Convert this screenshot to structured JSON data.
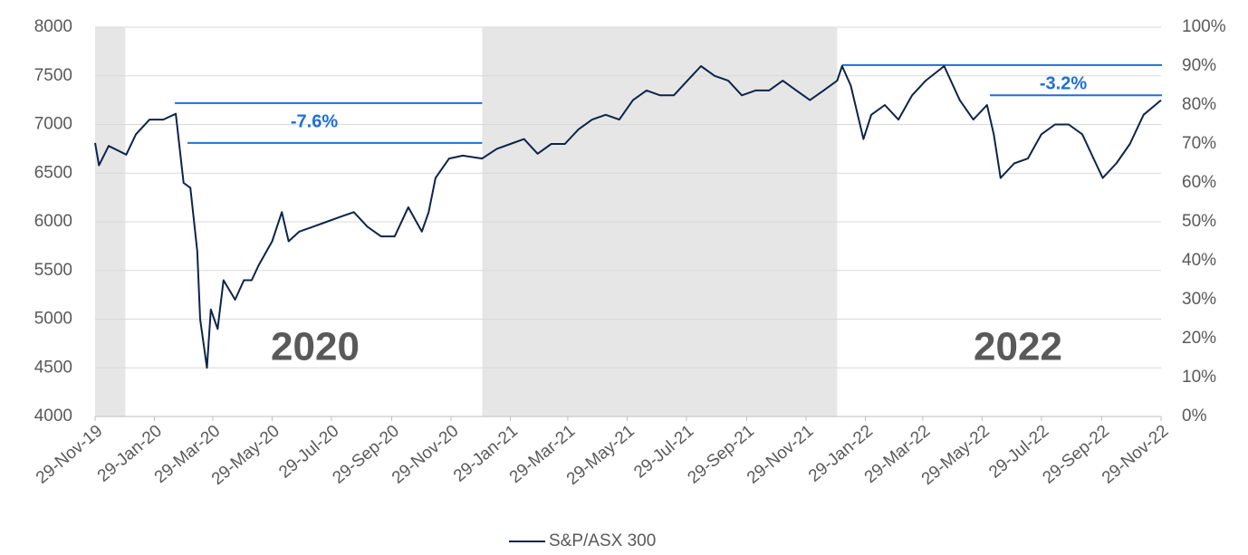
{
  "chart_data": {
    "type": "line",
    "x": [
      "2019-11-29",
      "2019-12-03",
      "2019-12-13",
      "2019-12-31",
      "2020-01-10",
      "2020-01-24",
      "2020-02-07",
      "2020-02-20",
      "2020-02-28",
      "2020-03-06",
      "2020-03-13",
      "2020-03-16",
      "2020-03-23",
      "2020-03-27",
      "2020-04-03",
      "2020-04-09",
      "2020-04-21",
      "2020-04-30",
      "2020-05-08",
      "2020-05-15",
      "2020-05-29",
      "2020-06-08",
      "2020-06-15",
      "2020-06-26",
      "2020-07-10",
      "2020-07-24",
      "2020-08-07",
      "2020-08-21",
      "2020-09-04",
      "2020-09-18",
      "2020-10-02",
      "2020-10-16",
      "2020-10-30",
      "2020-11-06",
      "2020-11-13",
      "2020-11-27",
      "2020-12-11",
      "2020-12-31",
      "2021-01-15",
      "2021-01-29",
      "2021-02-12",
      "2021-02-26",
      "2021-03-12",
      "2021-03-26",
      "2021-04-09",
      "2021-04-23",
      "2021-05-07",
      "2021-05-21",
      "2021-06-04",
      "2021-06-18",
      "2021-07-02",
      "2021-07-16",
      "2021-07-30",
      "2021-08-13",
      "2021-08-27",
      "2021-09-10",
      "2021-09-24",
      "2021-10-08",
      "2021-10-22",
      "2021-11-05",
      "2021-11-19",
      "2021-12-03",
      "2021-12-17",
      "2021-12-31",
      "2022-01-05",
      "2022-01-14",
      "2022-01-27",
      "2022-02-04",
      "2022-02-18",
      "2022-03-04",
      "2022-03-18",
      "2022-04-01",
      "2022-04-20",
      "2022-05-06",
      "2022-05-20",
      "2022-06-03",
      "2022-06-10",
      "2022-06-17",
      "2022-07-01",
      "2022-07-15",
      "2022-07-29",
      "2022-08-12",
      "2022-08-26",
      "2022-09-09",
      "2022-09-23",
      "2022-09-30",
      "2022-10-14",
      "2022-10-28",
      "2022-11-11",
      "2022-11-29"
    ],
    "series": [
      {
        "name": "S&P/ASX 300",
        "color": "#0d2449",
        "values": [
          6810,
          6580,
          6780,
          6690,
          6900,
          7050,
          7050,
          7110,
          6400,
          6350,
          5700,
          5000,
          4500,
          5100,
          4900,
          5400,
          5200,
          5400,
          5400,
          5550,
          5800,
          6100,
          5800,
          5900,
          5950,
          6000,
          6050,
          6100,
          5950,
          5850,
          5850,
          6150,
          5900,
          6100,
          6450,
          6650,
          6680,
          6650,
          6750,
          6800,
          6850,
          6700,
          6800,
          6800,
          6950,
          7050,
          7100,
          7050,
          7250,
          7350,
          7300,
          7300,
          7450,
          7600,
          7500,
          7450,
          7300,
          7350,
          7350,
          7450,
          7350,
          7250,
          7350,
          7450,
          7600,
          7400,
          6850,
          7100,
          7200,
          7050,
          7300,
          7450,
          7600,
          7250,
          7050,
          7200,
          6900,
          6450,
          6600,
          6650,
          6900,
          7000,
          7000,
          6900,
          6600,
          6450,
          6600,
          6800,
          7100,
          7250
        ]
      }
    ],
    "xlim": [
      "2019-11-29",
      "2022-11-29"
    ],
    "xticks": [
      {
        "value": "2019-11-29",
        "label": "29-Nov-19"
      },
      {
        "value": "2020-01-29",
        "label": "29-Jan-20"
      },
      {
        "value": "2020-03-29",
        "label": "29-Mar-20"
      },
      {
        "value": "2020-05-29",
        "label": "29-May-20"
      },
      {
        "value": "2020-07-29",
        "label": "29-Jul-20"
      },
      {
        "value": "2020-09-29",
        "label": "29-Sep-20"
      },
      {
        "value": "2020-11-29",
        "label": "29-Nov-20"
      },
      {
        "value": "2021-01-29",
        "label": "29-Jan-21"
      },
      {
        "value": "2021-03-29",
        "label": "29-Mar-21"
      },
      {
        "value": "2021-05-29",
        "label": "29-May-21"
      },
      {
        "value": "2021-07-29",
        "label": "29-Jul-21"
      },
      {
        "value": "2021-09-29",
        "label": "29-Sep-21"
      },
      {
        "value": "2021-11-29",
        "label": "29-Nov-21"
      },
      {
        "value": "2022-01-29",
        "label": "29-Jan-22"
      },
      {
        "value": "2022-03-29",
        "label": "29-Mar-22"
      },
      {
        "value": "2022-05-29",
        "label": "29-May-22"
      },
      {
        "value": "2022-07-29",
        "label": "29-Jul-22"
      },
      {
        "value": "2022-09-29",
        "label": "29-Sep-22"
      },
      {
        "value": "2022-11-29",
        "label": "29-Nov-22"
      }
    ],
    "ylim": [
      4000,
      8000
    ],
    "yticks": [
      4000,
      4500,
      5000,
      5500,
      6000,
      6500,
      7000,
      7500,
      8000
    ],
    "y2lim": [
      0,
      100
    ],
    "y2ticks": [
      {
        "value": 0,
        "label": "0%"
      },
      {
        "value": 10,
        "label": "10%"
      },
      {
        "value": 20,
        "label": "20%"
      },
      {
        "value": 30,
        "label": "30%"
      },
      {
        "value": 40,
        "label": "40%"
      },
      {
        "value": 50,
        "label": "50%"
      },
      {
        "value": 60,
        "label": "60%"
      },
      {
        "value": 70,
        "label": "70%"
      },
      {
        "value": 80,
        "label": "80%"
      },
      {
        "value": 90,
        "label": "90%"
      },
      {
        "value": 100,
        "label": "100%"
      }
    ],
    "grid": true,
    "bands": [
      {
        "start": "2019-11-29",
        "end": "2019-12-30",
        "color": "#e6e6e6"
      },
      {
        "start": "2020-12-31",
        "end": "2021-12-31",
        "color": "#e6e6e6"
      }
    ],
    "reference_lines": [
      {
        "y": 7220,
        "start": "2020-02-19",
        "end": "2020-12-31",
        "color": "#1f6fd6"
      },
      {
        "y": 6810,
        "start": "2020-03-03",
        "end": "2020-12-31",
        "color": "#1f6fd6"
      },
      {
        "y": 7610,
        "start": "2022-01-05",
        "end": "2022-11-30",
        "color": "#1f6fd6"
      },
      {
        "y": 7300,
        "start": "2022-06-06",
        "end": "2022-11-30",
        "color": "#1f6fd6"
      }
    ],
    "annotations": [
      {
        "text": "-7.6%",
        "color": "#1f6fd6"
      },
      {
        "text": "-3.2%",
        "color": "#1f6fd6"
      },
      {
        "text": "2020",
        "color": "#595959"
      },
      {
        "text": "2022",
        "color": "#595959"
      }
    ],
    "legend": "bottom"
  }
}
